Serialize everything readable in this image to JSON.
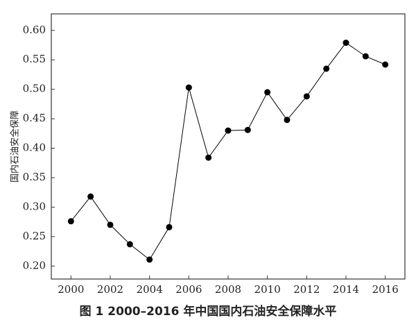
{
  "chart_data": {
    "type": "line",
    "title": "图 1  2000–2016 年中国国内石油安全保障水平",
    "y_label": "国内石油安全保障",
    "x": [
      2000,
      2001,
      2002,
      2003,
      2004,
      2005,
      2006,
      2007,
      2008,
      2009,
      2010,
      2011,
      2012,
      2013,
      2014,
      2015,
      2016
    ],
    "values": [
      0.276,
      0.318,
      0.27,
      0.237,
      0.211,
      0.266,
      0.503,
      0.384,
      0.43,
      0.431,
      0.495,
      0.448,
      0.488,
      0.535,
      0.579,
      0.556,
      0.542
    ],
    "color": "#000000",
    "xlim": [
      1999,
      2017
    ],
    "xticks": [
      2000,
      2002,
      2004,
      2006,
      2008,
      2010,
      2012,
      2014,
      2016
    ],
    "ylim": [
      0.178,
      0.628
    ],
    "yticks": [
      {
        "value": 0.2,
        "label": "0.20"
      },
      0.25,
      {
        "value": 0.3,
        "label": "0.30"
      },
      0.35,
      {
        "value": 0.4,
        "label": "0.40"
      },
      0.45,
      {
        "value": 0.5,
        "label": "0.50"
      },
      0.55,
      {
        "value": 0.6,
        "label": "0.60"
      }
    ],
    "grid": false
  }
}
